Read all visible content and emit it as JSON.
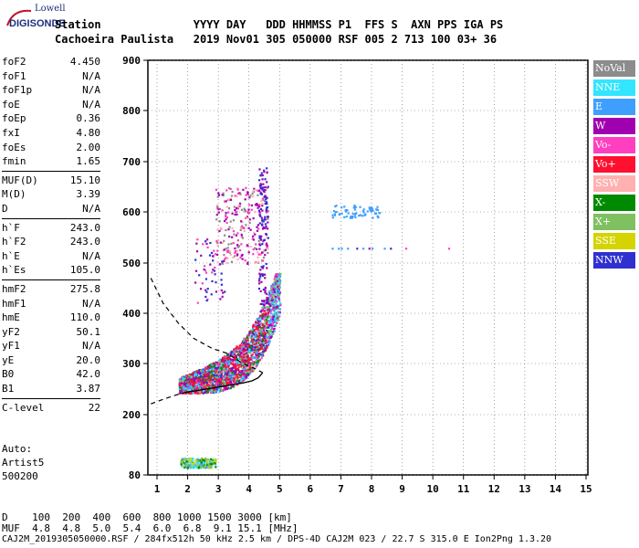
{
  "logo": {
    "top": "Lowell",
    "bottom": "DIGISONDE"
  },
  "header": {
    "line1": "Station              YYYY DAY   DDD HHMMSS P1  FFS S  AXN PPS IGA PS",
    "line2": "Cachoeira Paulista   2019 Nov01 305 050000 RSF 005 2 713 100 03+ 36"
  },
  "params": {
    "group1": [
      {
        "label": "foF2",
        "value": "4.450"
      },
      {
        "label": "foF1",
        "value": "N/A"
      },
      {
        "label": "foF1p",
        "value": "N/A"
      },
      {
        "label": "foE",
        "value": "N/A"
      },
      {
        "label": "foEp",
        "value": "0.36"
      },
      {
        "label": "fxI",
        "value": "4.80"
      },
      {
        "label": "foEs",
        "value": "2.00"
      },
      {
        "label": "fmin",
        "value": "1.65"
      }
    ],
    "group2": [
      {
        "label": "MUF(D)",
        "value": "15.10"
      },
      {
        "label": "M(D)",
        "value": "3.39"
      },
      {
        "label": "D",
        "value": "N/A"
      }
    ],
    "group3": [
      {
        "label": "h`F",
        "value": "243.0"
      },
      {
        "label": "h`F2",
        "value": "243.0"
      },
      {
        "label": "h`E",
        "value": "N/A"
      },
      {
        "label": "h`Es",
        "value": "105.0"
      }
    ],
    "group4": [
      {
        "label": "hmF2",
        "value": "275.8"
      },
      {
        "label": "hmF1",
        "value": "N/A"
      },
      {
        "label": "hmE",
        "value": "110.0"
      },
      {
        "label": "yF2",
        "value": "50.1"
      },
      {
        "label": "yF1",
        "value": "N/A"
      },
      {
        "label": "yE",
        "value": "20.0"
      },
      {
        "label": "B0",
        "value": "42.0"
      },
      {
        "label": "B1",
        "value": "3.87"
      }
    ],
    "group5": [
      {
        "label": "C-level",
        "value": "22"
      }
    ]
  },
  "autoscale": {
    "line1": "Auto:",
    "line2": "Artist5",
    "line3": "500200"
  },
  "legend": [
    {
      "label": "NoVal",
      "color": "#8c8c8c"
    },
    {
      "label": "NNE",
      "color": "#33e5ff"
    },
    {
      "label": "E",
      "color": "#3f9fff"
    },
    {
      "label": "W",
      "color": "#a000b0"
    },
    {
      "label": "Vo-",
      "color": "#ff3fc0"
    },
    {
      "label": "Vo+",
      "color": "#ff1030"
    },
    {
      "label": "SSW",
      "color": "#ffb0b0"
    },
    {
      "label": "X-",
      "color": "#008a00"
    },
    {
      "label": "X+",
      "color": "#7fc060"
    },
    {
      "label": "SSE",
      "color": "#d4d400"
    },
    {
      "label": "NNW",
      "color": "#3030d0"
    }
  ],
  "footer": {
    "line1": "D    100  200  400  600  800 1000 1500 3000 [km]",
    "line2": "MUF  4.8  4.8  5.0  5.4  6.0  6.8  9.1 15.1 [MHz]",
    "line3": "CAJ2M_2019305050000.RSF / 284fx512h 50 kHz 2.5 km / DPS-4D CAJ2M 023 / 22.7 S 315.0 E Ion2Png 1.3.20"
  },
  "chart_data": {
    "type": "scatter",
    "xlabel": "",
    "ylabel": "",
    "xlim": [
      0.8,
      15.2
    ],
    "ylim": [
      80,
      900
    ],
    "x_ticks": [
      1,
      2,
      3,
      4,
      5,
      6,
      7,
      8,
      9,
      10,
      11,
      12,
      13,
      14,
      15
    ],
    "y_ticks": [
      80,
      200,
      300,
      400,
      500,
      600,
      700,
      800,
      900
    ],
    "y_tick_labels": [
      "80",
      "200",
      "300",
      "400",
      "500",
      "600",
      "700",
      "800",
      "900"
    ],
    "grid": true,
    "y_scale": "nonlinear",
    "echo_clusters": [
      {
        "name": "F-trace",
        "x_range": [
          1.7,
          5.0
        ],
        "h_range": [
          240,
          480
        ]
      },
      {
        "name": "F-trace upper",
        "x_range": [
          2.9,
          4.6
        ],
        "h_range": [
          500,
          690
        ]
      },
      {
        "name": "Es-trace",
        "x_range": [
          1.75,
          2.9
        ],
        "h_range": [
          95,
          115
        ]
      },
      {
        "name": "2F spread",
        "x_range": [
          6.7,
          8.3
        ],
        "h_range": [
          590,
          615
        ]
      },
      {
        "name": "2F line",
        "x_range": [
          6.6,
          10.5
        ],
        "h_range": [
          528,
          532
        ]
      }
    ],
    "profile_solid": [
      [
        1.9,
        243
      ],
      [
        2.2,
        246
      ],
      [
        2.6,
        250
      ],
      [
        3.0,
        254
      ],
      [
        3.4,
        258
      ],
      [
        3.8,
        262
      ],
      [
        4.1,
        266
      ],
      [
        4.3,
        272
      ],
      [
        4.45,
        282
      ]
    ],
    "profile_dashed_upper": [
      [
        0.8,
        470
      ],
      [
        1.2,
        420
      ],
      [
        1.7,
        380
      ],
      [
        2.2,
        350
      ],
      [
        2.8,
        330
      ],
      [
        3.3,
        320
      ],
      [
        3.8,
        300
      ],
      [
        4.2,
        290
      ],
      [
        4.45,
        282
      ]
    ],
    "profile_dashed_lower": [
      [
        0.8,
        221
      ],
      [
        1.2,
        230
      ],
      [
        1.6,
        238
      ],
      [
        1.9,
        243
      ]
    ]
  }
}
